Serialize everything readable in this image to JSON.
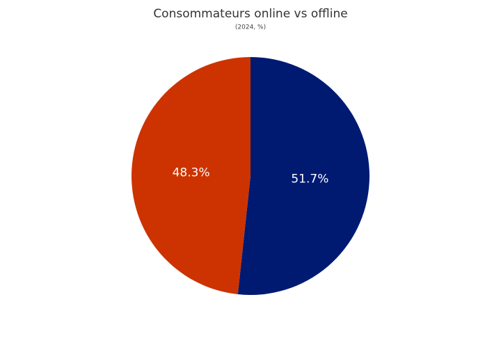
{
  "chart_data": {
    "type": "pie",
    "title": "Consommateurs online vs offline",
    "subtitle": "(2024, %)",
    "values": [
      51.7,
      48.3
    ],
    "value_labels": [
      "51.7%",
      "48.3%"
    ],
    "colors": [
      "#001a72",
      "#cc3300"
    ]
  }
}
